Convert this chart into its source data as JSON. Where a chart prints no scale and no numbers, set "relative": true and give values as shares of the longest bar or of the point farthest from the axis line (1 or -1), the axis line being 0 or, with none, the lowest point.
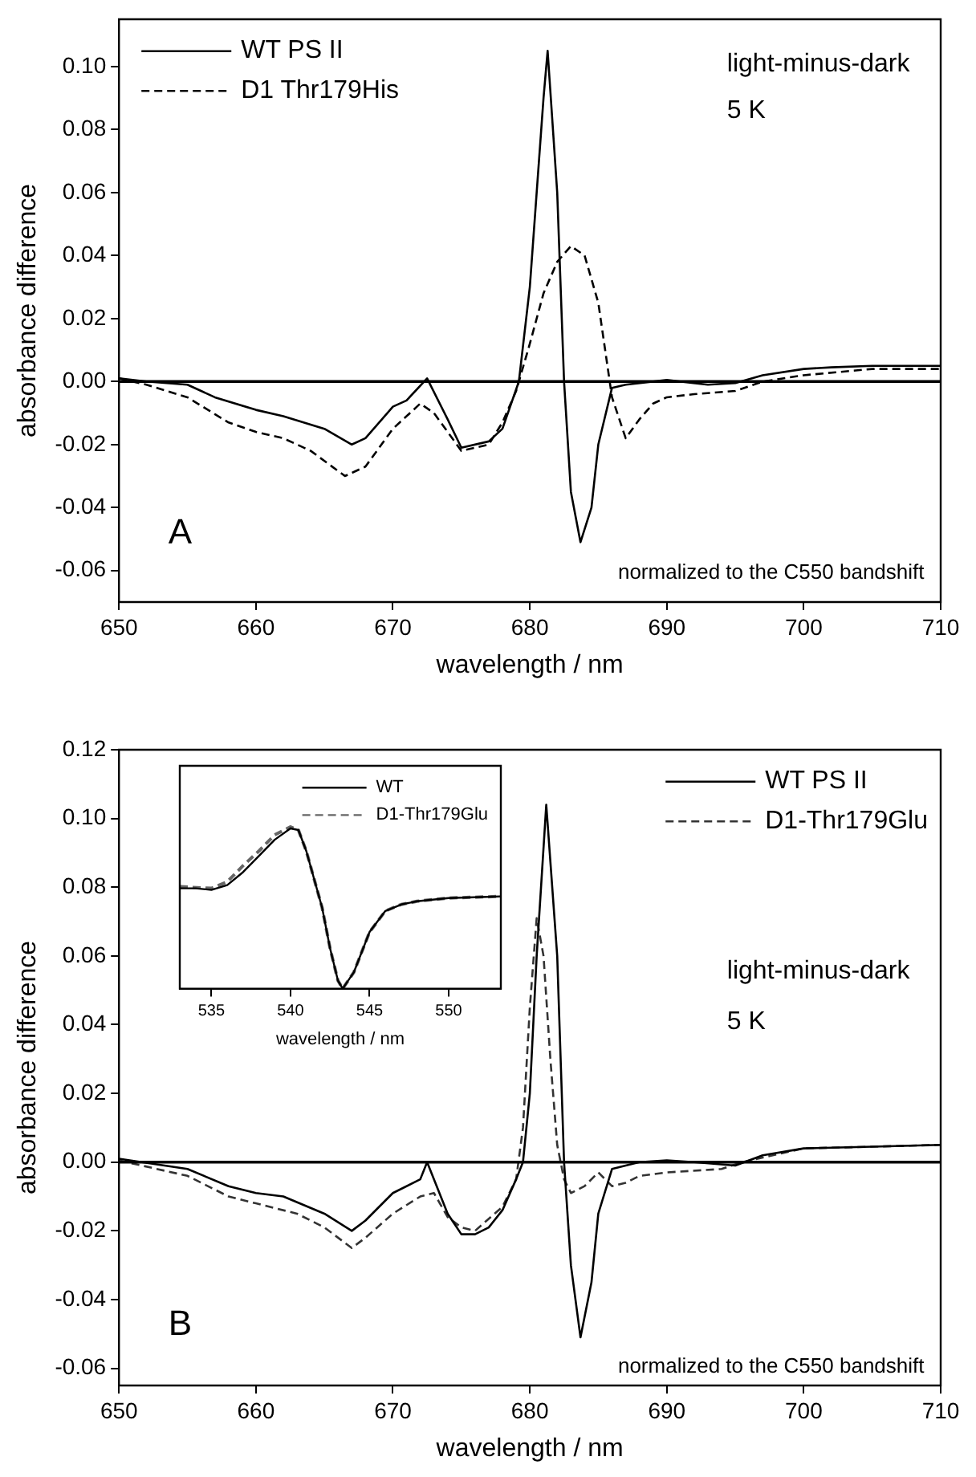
{
  "chart_data": [
    {
      "type": "line",
      "xlabel": "wavelength / nm",
      "ylabel": "absorbance difference",
      "xlim": [
        650,
        710
      ],
      "ylim": [
        -0.07,
        0.115
      ],
      "xticks": [
        650,
        660,
        670,
        680,
        690,
        700,
        710
      ],
      "yticks": [
        {
          "value": -0.06,
          "label": "-0.06"
        },
        {
          "value": -0.04,
          "label": "-0.04"
        },
        {
          "value": -0.02,
          "label": "-0.02"
        },
        {
          "value": 0,
          "label": "0.00"
        },
        {
          "value": 0.02,
          "label": "0.02"
        },
        {
          "value": 0.04,
          "label": "0.04"
        },
        {
          "value": 0.06,
          "label": "0.06"
        },
        {
          "value": 0.08,
          "label": "0.08"
        },
        {
          "value": 0.1,
          "label": "0.10"
        }
      ],
      "grid": false,
      "legend": "top left",
      "marker": "none",
      "ref_lines": [
        {
          "axis": "y",
          "value": 0,
          "color": "#000000"
        }
      ],
      "annotations": [
        "light-minus-dark",
        "5 K",
        "A",
        "normalized to the C550 bandshift"
      ],
      "series": [
        {
          "name": "WT PS II",
          "color": "#000000",
          "line_style": "solid",
          "x": [
            650,
            652,
            655,
            657,
            660,
            662,
            665,
            667,
            668,
            670,
            671,
            672.5,
            674,
            675,
            677,
            678,
            679.2,
            680,
            681,
            681.3,
            682,
            682.5,
            683,
            683.7,
            684.5,
            685,
            686,
            687,
            690,
            693,
            695,
            697,
            700,
            702,
            705,
            710
          ],
          "values": [
            0.001,
            0,
            -0.001,
            -0.005,
            -0.009,
            -0.011,
            -0.015,
            -0.02,
            -0.018,
            -0.008,
            -0.006,
            0.001,
            -0.012,
            -0.021,
            -0.019,
            -0.015,
            0,
            0.03,
            0.09,
            0.105,
            0.06,
            0,
            -0.035,
            -0.051,
            -0.04,
            -0.02,
            -0.002,
            -0.001,
            0.0005,
            -0.001,
            -0.0005,
            0.002,
            0.004,
            0.0045,
            0.005,
            0.005
          ]
        },
        {
          "name": "D1 Thr179His",
          "color": "#000000",
          "line_style": "dashed",
          "x": [
            650,
            652,
            655,
            658,
            660,
            662,
            664,
            666.5,
            668,
            670,
            672,
            673,
            675,
            677,
            678,
            679,
            680,
            681,
            682,
            683,
            684,
            685,
            685.5,
            686,
            687,
            688,
            689,
            690,
            692,
            695,
            697,
            700,
            705,
            710
          ],
          "values": [
            0.001,
            -0.001,
            -0.005,
            -0.013,
            -0.016,
            -0.018,
            -0.022,
            -0.03,
            -0.027,
            -0.015,
            -0.007,
            -0.01,
            -0.022,
            -0.02,
            -0.013,
            -0.003,
            0.012,
            0.028,
            0.038,
            0.043,
            0.04,
            0.025,
            0.01,
            -0.005,
            -0.018,
            -0.012,
            -0.007,
            -0.005,
            -0.004,
            -0.003,
            0,
            0.002,
            0.004,
            0.004
          ]
        }
      ]
    },
    {
      "type": "line",
      "xlabel": "wavelength / nm",
      "ylabel": "absorbance difference",
      "xlim": [
        650,
        710
      ],
      "ylim": [
        -0.065,
        0.12
      ],
      "xticks": [
        650,
        660,
        670,
        680,
        690,
        700,
        710
      ],
      "yticks": [
        {
          "value": -0.06,
          "label": "-0.06"
        },
        {
          "value": -0.04,
          "label": "-0.04"
        },
        {
          "value": -0.02,
          "label": "-0.02"
        },
        {
          "value": 0,
          "label": "0.00"
        },
        {
          "value": 0.02,
          "label": "0.02"
        },
        {
          "value": 0.04,
          "label": "0.04"
        },
        {
          "value": 0.06,
          "label": "0.06"
        },
        {
          "value": 0.08,
          "label": "0.08"
        },
        {
          "value": 0.1,
          "label": "0.10"
        },
        {
          "value": 0.12,
          "label": "0.12"
        }
      ],
      "grid": false,
      "legend": "top right",
      "marker": "none",
      "ref_lines": [
        {
          "axis": "y",
          "value": 0,
          "color": "#000000"
        }
      ],
      "annotations": [
        "light-minus-dark",
        "5 K",
        "B",
        "normalized to the C550 bandshift"
      ],
      "series": [
        {
          "name": "WT PS II",
          "color": "#000000",
          "line_style": "solid",
          "x": [
            650,
            655,
            658,
            660,
            662,
            665,
            667,
            668,
            670,
            672,
            672.5,
            674,
            675,
            676,
            677,
            678,
            679,
            679.5,
            680,
            680.5,
            681.2,
            682,
            682.5,
            683,
            683.7,
            684.5,
            685,
            686,
            688,
            690,
            692,
            695,
            697,
            700,
            705,
            710
          ],
          "values": [
            0.001,
            -0.002,
            -0.007,
            -0.009,
            -0.01,
            -0.015,
            -0.02,
            -0.017,
            -0.009,
            -0.005,
            0,
            -0.015,
            -0.021,
            -0.021,
            -0.019,
            -0.014,
            -0.005,
            0,
            0.02,
            0.06,
            0.104,
            0.06,
            0,
            -0.03,
            -0.051,
            -0.035,
            -0.015,
            -0.002,
            0,
            0.0005,
            0,
            -0.001,
            0.002,
            0.004,
            0.0045,
            0.005
          ]
        },
        {
          "name": "D1-Thr179Glu",
          "color": "#333333",
          "line_style": "dashed",
          "x": [
            650,
            655,
            658,
            660,
            663,
            665,
            667,
            668,
            670,
            672,
            673,
            674,
            675,
            676,
            678,
            679,
            679.5,
            680,
            680.5,
            681,
            681.5,
            682,
            682.5,
            683,
            684,
            685,
            686,
            687,
            688,
            690,
            694,
            695.5,
            700,
            710
          ],
          "values": [
            0.0005,
            -0.004,
            -0.01,
            -0.012,
            -0.015,
            -0.019,
            -0.025,
            -0.022,
            -0.015,
            -0.01,
            -0.009,
            -0.016,
            -0.019,
            -0.02,
            -0.013,
            -0.005,
            0.01,
            0.045,
            0.071,
            0.06,
            0.03,
            0.005,
            -0.005,
            -0.009,
            -0.007,
            -0.003,
            -0.007,
            -0.006,
            -0.004,
            -0.003,
            -0.002,
            0,
            0.004,
            0.005
          ]
        }
      ]
    },
    {
      "type": "line",
      "relative": true,
      "xlabel": "wavelength / nm",
      "xlim": [
        533,
        553.3
      ],
      "xticks": [
        535,
        540,
        545,
        550
      ],
      "tick_labels": "x",
      "grid": false,
      "legend": "top right",
      "marker": "none",
      "series": [
        {
          "name": "WT",
          "color": "#000000",
          "line_style": "solid",
          "x": [
            533,
            534,
            535,
            536,
            537,
            538,
            539,
            540,
            540.5,
            541,
            542,
            542.5,
            543,
            543.3,
            544,
            545,
            546,
            547,
            548,
            550,
            553.3
          ],
          "values": [
            0.62,
            0.62,
            0.61,
            0.64,
            0.72,
            0.82,
            0.92,
            0.99,
            0.98,
            0.85,
            0.5,
            0.25,
            0.05,
            0,
            0.1,
            0.35,
            0.48,
            0.52,
            0.54,
            0.56,
            0.57
          ]
        },
        {
          "name": "D1-Thr179Glu",
          "color": "#666666",
          "line_style": "dashed",
          "x": [
            533,
            535,
            536,
            537,
            538,
            539,
            540,
            540.5,
            541,
            542,
            542.5,
            543,
            543.3,
            544,
            545,
            546,
            547,
            548,
            550,
            553.3
          ],
          "values": [
            0.63,
            0.62,
            0.66,
            0.76,
            0.85,
            0.95,
            1,
            0.98,
            0.85,
            0.5,
            0.25,
            0.05,
            0,
            0.1,
            0.35,
            0.48,
            0.52,
            0.54,
            0.56,
            0.57
          ]
        }
      ]
    }
  ]
}
